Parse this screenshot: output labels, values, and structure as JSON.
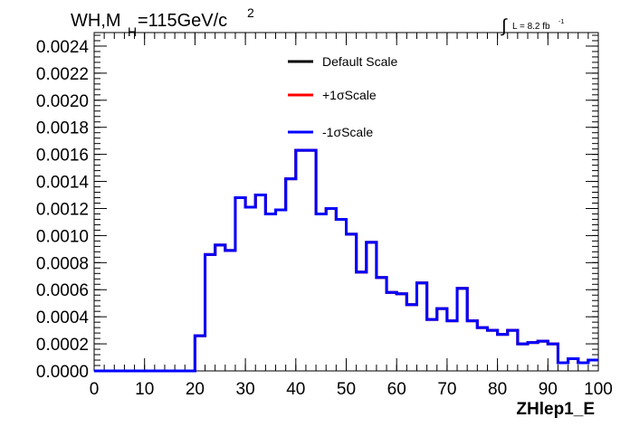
{
  "chart_data": {
    "type": "line",
    "title_main": "WH,M",
    "title_sub": "H",
    "title_mass": "=115GeV/c",
    "title_sup": "2",
    "lumi_label": "L = 8.2 fb",
    "lumi_sup": "-1",
    "integral_symbol": "∫",
    "xlabel": "ZHlep1_E",
    "ylabel": "",
    "xlim": [
      0,
      100
    ],
    "ylim": [
      0,
      0.0025
    ],
    "x_ticks": [
      "0",
      "10",
      "20",
      "30",
      "40",
      "50",
      "60",
      "70",
      "80",
      "90",
      "100"
    ],
    "y_ticks": [
      "0.0000",
      "0.0002",
      "0.0004",
      "0.0006",
      "0.0008",
      "0.0010",
      "0.0012",
      "0.0014",
      "0.0016",
      "0.0018",
      "0.0020",
      "0.0022",
      "0.0024"
    ],
    "bin_edges": [
      0,
      2,
      4,
      6,
      8,
      10,
      12,
      14,
      16,
      18,
      20,
      22,
      24,
      26,
      28,
      30,
      32,
      34,
      36,
      38,
      40,
      42,
      44,
      46,
      48,
      50,
      52,
      54,
      56,
      58,
      60,
      62,
      64,
      66,
      68,
      70,
      72,
      74,
      76,
      78,
      80,
      82,
      84,
      86,
      88,
      90,
      92,
      94,
      96,
      98,
      100
    ],
    "legend_position": "top-center",
    "series": [
      {
        "name": "Default Scale",
        "color": "#000000",
        "values": [
          0,
          0,
          0,
          0,
          0,
          0,
          0,
          0,
          0,
          0,
          0.00026,
          0.00086,
          0.00093,
          0.00089,
          0.00128,
          0.00121,
          0.0013,
          0.00116,
          0.00119,
          0.00142,
          0.00163,
          0.00163,
          0.00116,
          0.0012,
          0.00112,
          0.00101,
          0.00073,
          0.00095,
          0.00069,
          0.00058,
          0.00057,
          0.00049,
          0.00065,
          0.00038,
          0.00046,
          0.00037,
          0.00061,
          0.00037,
          0.00032,
          0.0003,
          0.00027,
          0.0003,
          0.0002,
          0.00021,
          0.00022,
          0.0002,
          6e-05,
          9e-05,
          6e-05,
          8e-05
        ]
      },
      {
        "name": "+1σScale",
        "color": "#ff0000",
        "values": [
          0,
          0,
          0,
          0,
          0,
          0,
          0,
          0,
          0,
          0,
          0.00026,
          0.00086,
          0.00093,
          0.00089,
          0.00128,
          0.00121,
          0.0013,
          0.00116,
          0.00119,
          0.00142,
          0.00163,
          0.00163,
          0.00116,
          0.0012,
          0.00112,
          0.00101,
          0.00073,
          0.00095,
          0.00069,
          0.00058,
          0.00057,
          0.00049,
          0.00065,
          0.00038,
          0.00046,
          0.00037,
          0.00061,
          0.00037,
          0.00032,
          0.0003,
          0.00027,
          0.0003,
          0.0002,
          0.00021,
          0.00022,
          0.0002,
          6e-05,
          9e-05,
          6e-05,
          8e-05
        ]
      },
      {
        "name": "-1σScale",
        "color": "#0000ff",
        "values": [
          0,
          0,
          0,
          0,
          0,
          0,
          0,
          0,
          0,
          0,
          0.00026,
          0.00086,
          0.00093,
          0.00089,
          0.00128,
          0.00121,
          0.0013,
          0.00116,
          0.00119,
          0.00142,
          0.00163,
          0.00163,
          0.00116,
          0.0012,
          0.00112,
          0.00101,
          0.00073,
          0.00095,
          0.00069,
          0.00058,
          0.00057,
          0.00049,
          0.00065,
          0.00038,
          0.00046,
          0.00037,
          0.00061,
          0.00037,
          0.00032,
          0.0003,
          0.00027,
          0.0003,
          0.0002,
          0.00021,
          0.00022,
          0.0002,
          6e-05,
          9e-05,
          6e-05,
          8e-05
        ]
      }
    ]
  }
}
